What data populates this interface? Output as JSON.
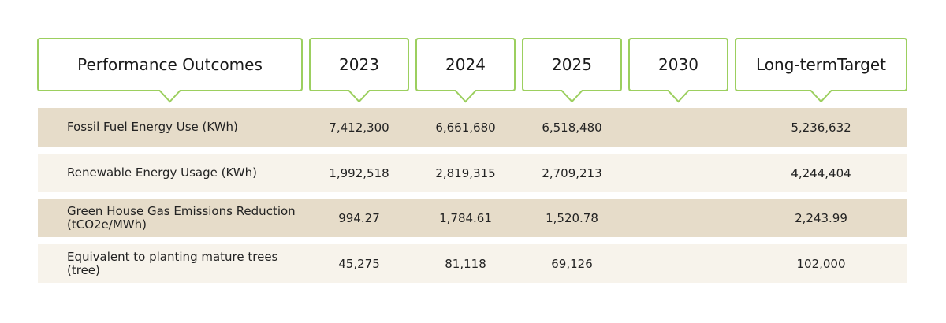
{
  "table": {
    "header": [
      "Performance Outcomes",
      "2023",
      "2024",
      "2025",
      "2030",
      "Long-termTarget"
    ],
    "rows": [
      [
        "Fossil Fuel Energy Use (KWh)",
        "7,412,300",
        "6,661,680",
        "6,518,480",
        null,
        "5,236,632"
      ],
      [
        "Renewable Energy Usage (KWh)",
        "1,992,518",
        "2,819,315",
        "2,709,213",
        null,
        "4,244,404"
      ],
      [
        "Green House Gas Emissions Reduction (tCO2e/MWh)",
        "994.27",
        "1,784.61",
        "1,520.78",
        null,
        "2,243.99"
      ],
      [
        "Equivalent to planting mature trees (tree)",
        "45,275",
        "81,118",
        "69,126",
        null,
        "102,000"
      ]
    ]
  }
}
